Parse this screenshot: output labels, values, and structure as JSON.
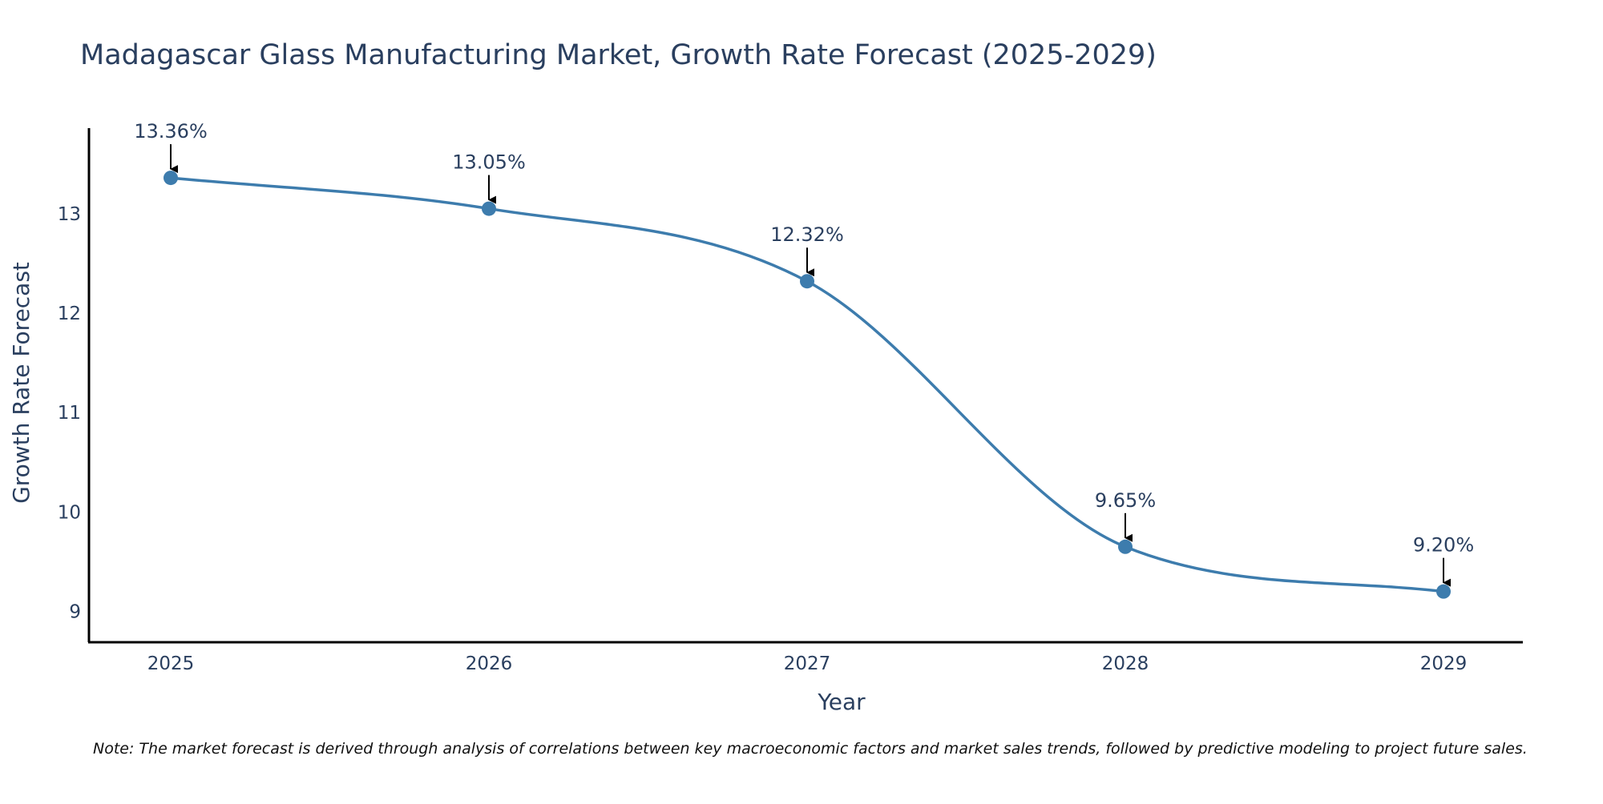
{
  "chart_data": {
    "type": "line",
    "title": "Madagascar Glass Manufacturing Market, Growth Rate Forecast (2025-2029)",
    "xlabel": "Year",
    "ylabel": "Growth Rate Forecast",
    "categories": [
      "2025",
      "2026",
      "2027",
      "2028",
      "2029"
    ],
    "values": [
      13.36,
      13.05,
      12.32,
      9.65,
      9.2
    ],
    "data_labels": [
      "13.36%",
      "13.05%",
      "12.32%",
      "9.65%",
      "9.20%"
    ],
    "yticks": [
      9,
      10,
      11,
      12,
      13
    ],
    "ylim": [
      8.69,
      13.86
    ],
    "line_shape": "spline",
    "grid": false,
    "line_color": "#3d7cad",
    "marker_color": "#3d7cad",
    "arrow_color": "#000000",
    "axis_color": "#000000"
  },
  "note": "Note: The market forecast is derived through analysis of correlations between key macroeconomic factors and market sales trends, followed by predictive modeling to project future sales."
}
